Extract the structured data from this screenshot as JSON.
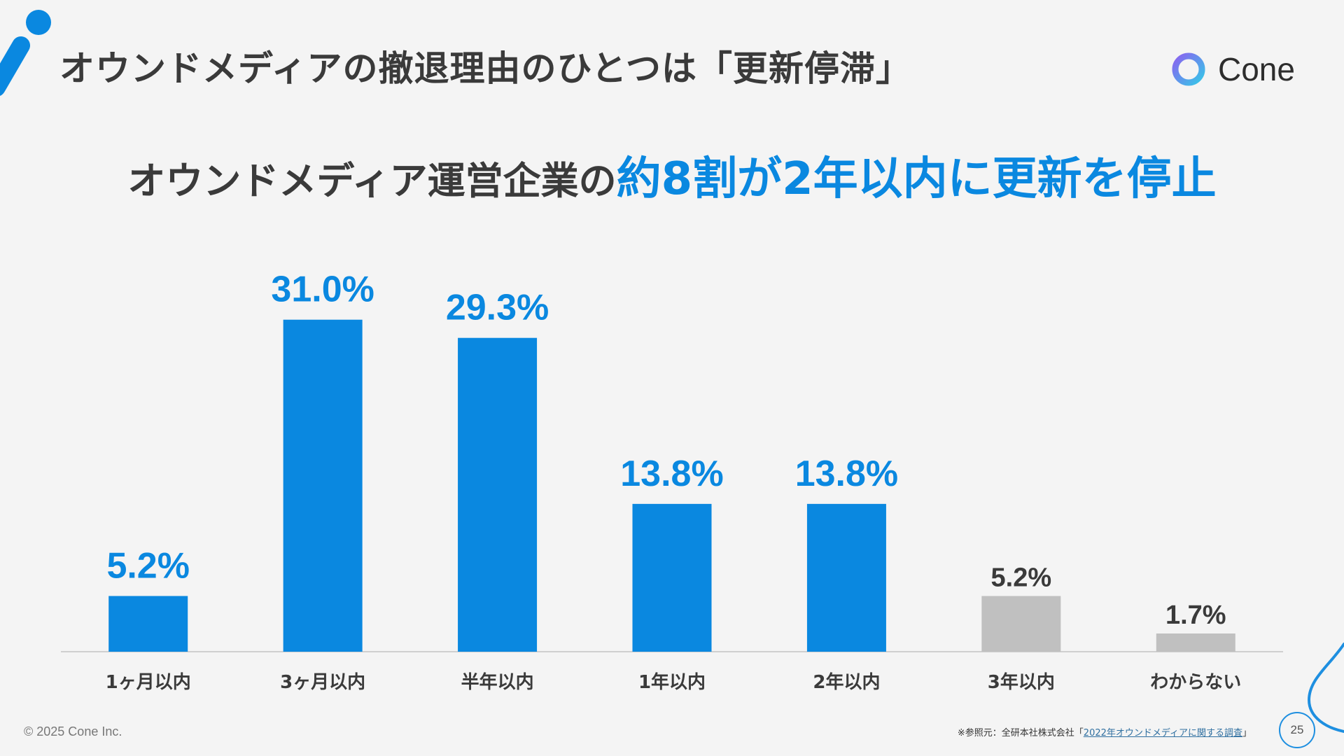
{
  "header": {
    "title": "オウンドメディアの撤退理由のひとつは「更新停滞」",
    "brand_name": "Cone"
  },
  "headline": {
    "prefix": "オウンドメディア運営企業の",
    "highlight": "約8割が2年以内に更新を停止"
  },
  "chart_data": {
    "type": "bar",
    "title": "",
    "xlabel": "",
    "ylabel": "",
    "ylim": [
      0,
      35
    ],
    "grid": false,
    "unit": "%",
    "categories": [
      "1ヶ月以内",
      "3ヶ月以内",
      "半年以内",
      "1年以内",
      "2年以内",
      "3年以内",
      "わからない"
    ],
    "values": [
      5.2,
      31.0,
      29.3,
      13.8,
      13.8,
      5.2,
      1.7
    ],
    "value_labels": [
      "5.2%",
      "31.0%",
      "29.3%",
      "13.8%",
      "13.8%",
      "5.2%",
      "1.7%"
    ],
    "highlighted": [
      true,
      true,
      true,
      true,
      true,
      false,
      false
    ]
  },
  "colors": {
    "accent": "#0a88e0",
    "muted_bar": "#c0c0c0",
    "text_dark": "#3a3a3a",
    "axis": "#cfcfcf"
  },
  "footer": {
    "copyright": "© 2025 Cone Inc.",
    "source_prefix": "※参照元：全研本社株式会社「",
    "source_link": "2022年オウンドメディアに関する調査",
    "source_suffix": "」",
    "page_number": "25"
  }
}
